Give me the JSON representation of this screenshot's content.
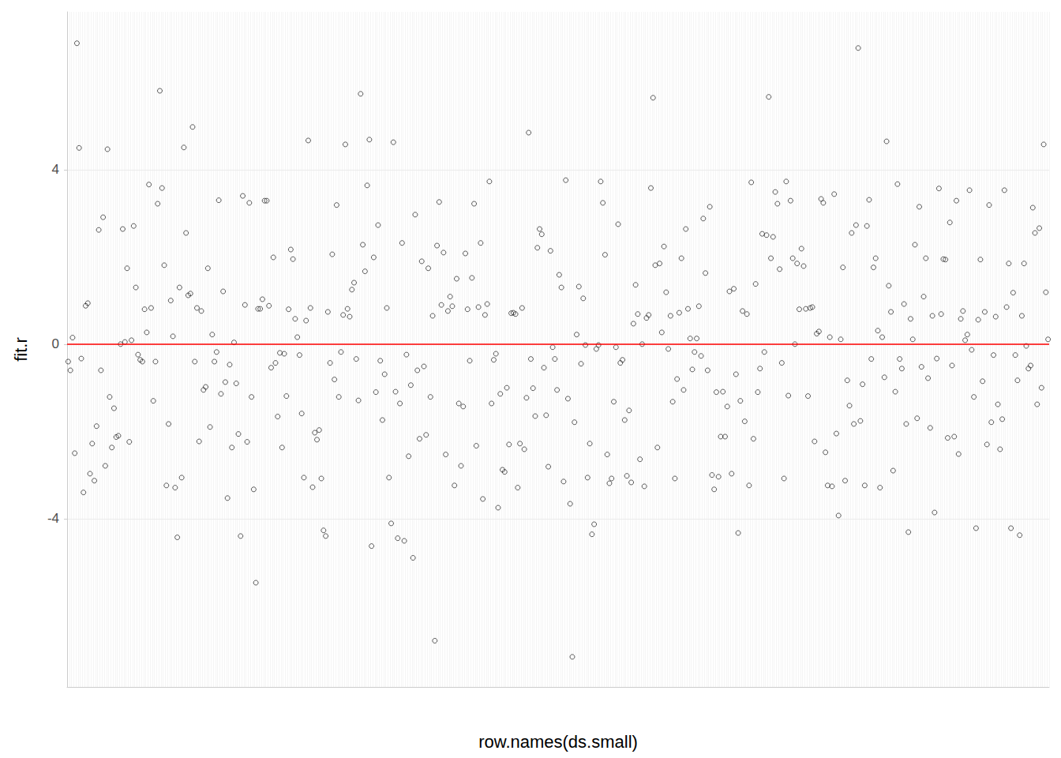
{
  "chart_data": {
    "type": "scatter",
    "x_label": "row.names(ds.small)",
    "y_label": "fit.r",
    "marker": "open_circle",
    "color": "#000000",
    "grid": true,
    "tick_labels": "y",
    "ylim": [
      -7.86,
      7.62
    ],
    "yticks": [
      -4,
      0,
      4
    ],
    "annotations": [
      {
        "type": "hline",
        "y": 0,
        "color": "#ff0000"
      }
    ],
    "categories": [
      null,
      null,
      null,
      null,
      null,
      null,
      null,
      null,
      null,
      null,
      null,
      null,
      null,
      null,
      null,
      null,
      null,
      null,
      null,
      null,
      null,
      null,
      null,
      null,
      null,
      null,
      null,
      null,
      null,
      null,
      null,
      null,
      null,
      null,
      null,
      null,
      null,
      null,
      null,
      null,
      null,
      null,
      null,
      null,
      null,
      null,
      null,
      null,
      null,
      null,
      null,
      null,
      null,
      null,
      null,
      null,
      null,
      null,
      null,
      null,
      null,
      null,
      null,
      null,
      null,
      null,
      null,
      null,
      null,
      null,
      null,
      null,
      null,
      null,
      null,
      null,
      null,
      null,
      null,
      null,
      null,
      null,
      null,
      null,
      null,
      null,
      null,
      null,
      null,
      null,
      null,
      null,
      null,
      null,
      null,
      null,
      null,
      null,
      null,
      null,
      null,
      null,
      null,
      null,
      null,
      null,
      null,
      null,
      null,
      null,
      null,
      null,
      null,
      null,
      null,
      null,
      null,
      null,
      null,
      null,
      null,
      null,
      null,
      null,
      null,
      null,
      null,
      null,
      null,
      null,
      null,
      null,
      null,
      null,
      null,
      null,
      null,
      null,
      null,
      null,
      null,
      null,
      null,
      null,
      null,
      null,
      null,
      null,
      null,
      null,
      null,
      null,
      null,
      null,
      null,
      null,
      null,
      null,
      null,
      null,
      null,
      null,
      null,
      null,
      null,
      null,
      null,
      null,
      null,
      null,
      null,
      null,
      null,
      null,
      null,
      null,
      null,
      null,
      null,
      null,
      null,
      null,
      null,
      null,
      null,
      null,
      null,
      null,
      null,
      null,
      null,
      null,
      null,
      null,
      null,
      null,
      null,
      null,
      null,
      null,
      null,
      null,
      null,
      null,
      null,
      null,
      null,
      null,
      null,
      null,
      null,
      null,
      null,
      null,
      null,
      null,
      null,
      null,
      null,
      null,
      null,
      null,
      null,
      null,
      null,
      null,
      null,
      null,
      null,
      null,
      null,
      null,
      null,
      null,
      null,
      null,
      null,
      null,
      null,
      null,
      null,
      null,
      null,
      null,
      null,
      null,
      null,
      null,
      null,
      null,
      null,
      null,
      null,
      null,
      null,
      null,
      null,
      null,
      null,
      null,
      null,
      null,
      null,
      null,
      null,
      null,
      null,
      null,
      null,
      null,
      null,
      null,
      null,
      null,
      null,
      null,
      null,
      null,
      null,
      null,
      null,
      null,
      null,
      null,
      null,
      null,
      null,
      null,
      null,
      null,
      null,
      null,
      null,
      null,
      null,
      null,
      null,
      null,
      null,
      null,
      null,
      null,
      null,
      null,
      null,
      null,
      null,
      null,
      null,
      null,
      null,
      null,
      null,
      null,
      null,
      null,
      null,
      null,
      null,
      null,
      null,
      null,
      null,
      null,
      null,
      null,
      null,
      null,
      null,
      null,
      null,
      null,
      null,
      null,
      null,
      null,
      null,
      null,
      null,
      null,
      null,
      null,
      null,
      null,
      null,
      null,
      null,
      null,
      null,
      null,
      null,
      null,
      null,
      null,
      null,
      null,
      null,
      null,
      null,
      null,
      null,
      null,
      null,
      null,
      null,
      null,
      null,
      null,
      null,
      null,
      null,
      null,
      null,
      null,
      null,
      null,
      null,
      null,
      null,
      null,
      null,
      null,
      null,
      null,
      null,
      null,
      null,
      null,
      null,
      null,
      null,
      null,
      null,
      null,
      null,
      null,
      null,
      null,
      null,
      null,
      null,
      null,
      null,
      null,
      null,
      null,
      null,
      null,
      null,
      null,
      null,
      null,
      null,
      null,
      null,
      null,
      null,
      null,
      null,
      null,
      null,
      null,
      null,
      null,
      null,
      null,
      null,
      null,
      null,
      null,
      null,
      null,
      null,
      null,
      null,
      null,
      null,
      null,
      null,
      null,
      null,
      null,
      null,
      null,
      null,
      null,
      null,
      null,
      null,
      null
    ],
    "values": [
      -0.4,
      -0.6,
      0.15,
      -2.5,
      6.9,
      4.5,
      -0.33,
      -3.4,
      0.88,
      0.94,
      -2.97,
      -2.28,
      -3.13,
      -1.88,
      2.62,
      -0.6,
      2.91,
      -2.79,
      4.47,
      -1.21,
      -2.37,
      -1.47,
      -2.13,
      -2.1,
      0.0,
      2.64,
      0.05,
      1.74,
      -2.24,
      0.09,
      2.71,
      1.3,
      -0.24,
      -0.36,
      -0.4,
      0.8,
      0.27,
      3.66,
      0.83,
      -1.3,
      -0.4,
      3.22,
      5.81,
      3.58,
      1.81,
      -3.24,
      -1.83,
      1.0,
      0.18,
      -3.29,
      -4.43,
      1.3,
      -3.06,
      4.51,
      2.55,
      1.12,
      1.16,
      4.98,
      -0.4,
      0.83,
      -2.23,
      0.76,
      -1.05,
      -0.98,
      1.74,
      -1.9,
      0.22,
      -0.4,
      -0.18,
      3.3,
      -1.14,
      1.21,
      -0.87,
      -3.53,
      -0.47,
      -2.37,
      0.04,
      -0.9,
      -2.06,
      -4.4,
      3.4,
      0.9,
      -2.24,
      3.24,
      -1.21,
      -3.33,
      -5.47,
      0.81,
      0.81,
      1.03,
      3.29,
      3.29,
      0.88,
      -0.54,
      1.99,
      -0.43,
      -1.66,
      -0.2,
      -2.37,
      -0.22,
      -1.19,
      0.8,
      2.17,
      1.95,
      0.58,
      0.16,
      -0.25,
      -1.59,
      -3.06,
      0.54,
      4.67,
      0.83,
      -3.28,
      -2.03,
      -2.19,
      -1.97,
      -3.08,
      -4.27,
      -4.4,
      0.74,
      -0.43,
      2.06,
      -0.81,
      3.19,
      -1.21,
      -0.18,
      0.67,
      4.58,
      0.81,
      0.63,
      1.25,
      1.41,
      -0.34,
      -1.29,
      5.74,
      2.28,
      1.67,
      3.64,
      4.69,
      -4.63,
      1.99,
      -1.1,
      2.73,
      -0.38,
      -1.74,
      -0.69,
      0.83,
      -3.06,
      -4.11,
      4.63,
      -1.09,
      -4.45,
      -1.36,
      2.32,
      -4.51,
      -0.24,
      -2.57,
      -0.94,
      -4.9,
      2.97,
      -0.6,
      -2.17,
      1.9,
      -0.51,
      -2.08,
      1.74,
      -1.21,
      0.65,
      -6.8,
      2.26,
      3.26,
      0.9,
      2.1,
      -2.53,
      0.76,
      1.09,
      0.87,
      -3.24,
      1.5,
      -1.36,
      -2.79,
      -1.43,
      2.08,
      0.8,
      -0.38,
      1.52,
      3.22,
      -2.33,
      0.85,
      2.32,
      -3.55,
      0.67,
      0.92,
      3.73,
      -1.36,
      -0.36,
      -0.22,
      -3.75,
      -1.14,
      -2.88,
      -2.93,
      -1.0,
      -2.3,
      0.71,
      0.72,
      0.69,
      -3.29,
      -2.28,
      0.83,
      -2.41,
      -1.23,
      4.85,
      -0.34,
      -1.01,
      -1.65,
      2.21,
      2.64,
      2.52,
      -0.54,
      -1.63,
      -2.81,
      2.14,
      -0.07,
      -0.34,
      -1.05,
      1.59,
      1.3,
      -3.15,
      3.76,
      -1.25,
      -3.66,
      -7.17,
      -1.79,
      0.22,
      1.32,
      -0.45,
      1.05,
      -0.02,
      -3.06,
      -2.28,
      -4.36,
      -4.13,
      -0.11,
      -0.02,
      3.73,
      3.24,
      2.05,
      -2.53,
      -3.19,
      -3.08,
      -1.32,
      -0.07,
      2.75,
      -0.43,
      -0.36,
      -1.74,
      -3.02,
      -1.52,
      -3.17,
      0.47,
      1.36,
      0.69,
      -2.64,
      0.0,
      -3.26,
      0.6,
      0.67,
      3.58,
      5.65,
      1.81,
      -2.37,
      1.85,
      0.27,
      2.24,
      1.19,
      -0.11,
      0.65,
      -1.32,
      -3.08,
      -0.8,
      0.72,
      1.97,
      -1.05,
      2.64,
      0.81,
      0.13,
      -0.58,
      -0.18,
      0.13,
      0.87,
      -0.27,
      2.88,
      1.63,
      -0.6,
      3.15,
      -3.0,
      -3.33,
      -1.1,
      -3.04,
      -2.12,
      -1.09,
      -2.12,
      -1.43,
      1.21,
      -2.97,
      1.27,
      -0.69,
      -4.33,
      -1.3,
      0.76,
      -1.77,
      0.69,
      -3.24,
      3.71,
      -2.17,
      1.38,
      -1.1,
      -0.56,
      2.53,
      -0.18,
      2.5,
      5.67,
      1.97,
      2.46,
      3.49,
      3.22,
      1.72,
      -0.43,
      -3.08,
      3.73,
      -1.18,
      3.29,
      1.97,
      0.0,
      1.85,
      0.8,
      2.19,
      1.79,
      0.81,
      -1.19,
      0.83,
      0.85,
      -2.23,
      0.24,
      0.29,
      3.33,
      3.24,
      -2.48,
      -3.24,
      0.16,
      -3.26,
      3.44,
      -2.05,
      -3.93,
      0.11,
      1.76,
      -3.13,
      -0.83,
      -1.41,
      2.55,
      -1.83,
      2.73,
      6.79,
      -1.76,
      -0.92,
      -3.24,
      2.71,
      3.31,
      -0.34,
      1.76,
      1.97,
      0.31,
      -3.29,
      0.16,
      -0.76,
      4.65,
      1.34,
      0.74,
      -2.9,
      -1.09,
      3.67,
      -0.34,
      -0.56,
      0.92,
      -1.83,
      -4.31,
      0.58,
      0.11,
      2.28,
      -1.7,
      3.15,
      -0.52,
      1.09,
      1.97,
      -0.78,
      -1.92,
      0.65,
      -3.86,
      -0.33,
      3.57,
      0.69,
      1.95,
      1.94,
      -2.15,
      2.79,
      -0.49,
      -2.12,
      3.29,
      -2.52,
      0.58,
      0.76,
      0.09,
      0.22,
      3.53,
      -0.13,
      -1.21,
      -4.22,
      0.56,
      1.94,
      -0.85,
      0.74,
      -2.3,
      3.19,
      -1.79,
      -0.25,
      0.63,
      -1.38,
      -2.41,
      -1.72,
      3.53,
      0.85,
      1.85,
      -4.22,
      1.18,
      -0.25,
      -0.83,
      -4.38,
      0.65,
      1.85,
      -0.04,
      -0.56,
      -0.49,
      3.13,
      2.55,
      -1.38,
      2.66,
      -1.0,
      4.58,
      1.19,
      0.11
    ]
  }
}
